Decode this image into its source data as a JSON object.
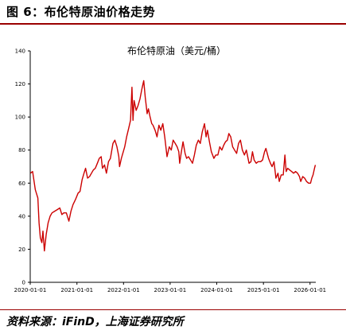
{
  "figure_title": "图 6：布伦特原油价格走势",
  "source_text": "资料来源：iFinD，上海证券研究所",
  "colors": {
    "series": "#cc0000",
    "rule": "#9b0000"
  },
  "chart_data": {
    "type": "line",
    "title": "布伦特原油（美元/桶）",
    "xlabel": "",
    "ylabel": "",
    "ylim": [
      0,
      140
    ],
    "y_ticks": [
      0,
      20,
      40,
      60,
      80,
      100,
      120,
      140
    ],
    "x_ticks": [
      "2020-01-01",
      "2021-01-01",
      "2022-01-01",
      "2023-01-01",
      "2024-01-01",
      "2025-01-01",
      "2026-01-01"
    ],
    "xlim": [
      "2020-01-01",
      "2026-02-15"
    ],
    "grid": false,
    "legend": "none",
    "series": [
      {
        "x": [
          "2020-01-02",
          "2020-01-20",
          "2020-02-10",
          "2020-03-01",
          "2020-03-10",
          "2020-03-20",
          "2020-04-01",
          "2020-04-10",
          "2020-04-21",
          "2020-05-05",
          "2020-05-20",
          "2020-06-05",
          "2020-06-20",
          "2020-07-10",
          "2020-08-01",
          "2020-08-20",
          "2020-09-05",
          "2020-09-20",
          "2020-10-10",
          "2020-10-30",
          "2020-11-15",
          "2020-12-01",
          "2020-12-20",
          "2021-01-10",
          "2021-01-25",
          "2021-02-10",
          "2021-02-25",
          "2021-03-10",
          "2021-03-25",
          "2021-04-10",
          "2021-04-25",
          "2021-05-10",
          "2021-05-25",
          "2021-06-10",
          "2021-06-25",
          "2021-07-10",
          "2021-07-20",
          "2021-08-05",
          "2021-08-20",
          "2021-09-05",
          "2021-09-20",
          "2021-10-10",
          "2021-10-25",
          "2021-11-10",
          "2021-11-25",
          "2021-12-01",
          "2021-12-15",
          "2022-01-10",
          "2022-01-25",
          "2022-02-10",
          "2022-02-25",
          "2022-03-08",
          "2022-03-16",
          "2022-03-25",
          "2022-04-10",
          "2022-04-25",
          "2022-05-10",
          "2022-05-25",
          "2022-06-08",
          "2022-06-20",
          "2022-07-05",
          "2022-07-15",
          "2022-07-28",
          "2022-08-10",
          "2022-08-20",
          "2022-09-05",
          "2022-09-20",
          "2022-10-05",
          "2022-10-20",
          "2022-11-05",
          "2022-11-20",
          "2022-12-08",
          "2022-12-25",
          "2023-01-10",
          "2023-01-25",
          "2023-02-10",
          "2023-02-25",
          "2023-03-10",
          "2023-03-17",
          "2023-03-28",
          "2023-04-12",
          "2023-04-28",
          "2023-05-10",
          "2023-05-25",
          "2023-06-10",
          "2023-06-25",
          "2023-07-10",
          "2023-07-25",
          "2023-08-10",
          "2023-08-25",
          "2023-09-10",
          "2023-09-27",
          "2023-10-10",
          "2023-10-20",
          "2023-11-05",
          "2023-11-20",
          "2023-12-10",
          "2023-12-25",
          "2024-01-10",
          "2024-01-25",
          "2024-02-10",
          "2024-02-25",
          "2024-03-10",
          "2024-03-25",
          "2024-04-05",
          "2024-04-20",
          "2024-05-05",
          "2024-05-20",
          "2024-06-05",
          "2024-06-20",
          "2024-07-05",
          "2024-07-20",
          "2024-08-05",
          "2024-08-20",
          "2024-09-10",
          "2024-09-25",
          "2024-10-07",
          "2024-10-20",
          "2024-11-05",
          "2024-11-20",
          "2024-12-10",
          "2024-12-25",
          "2025-01-10",
          "2025-01-20",
          "2025-02-10",
          "2025-02-25",
          "2025-03-10",
          "2025-03-25",
          "2025-04-09",
          "2025-04-25",
          "2025-05-05",
          "2025-05-20",
          "2025-06-05",
          "2025-06-18",
          "2025-06-28",
          "2025-07-10",
          "2025-07-25",
          "2025-08-10",
          "2025-08-25",
          "2025-09-10",
          "2025-09-25",
          "2025-10-10",
          "2025-10-20",
          "2025-11-05",
          "2025-11-20",
          "2025-12-05",
          "2025-12-20",
          "2026-01-05",
          "2026-01-15",
          "2026-01-25",
          "2026-02-05",
          "2026-02-12"
        ],
        "y": [
          66,
          67,
          56,
          51,
          36,
          27,
          24,
          31,
          19,
          29,
          36,
          40,
          42,
          43,
          44,
          45,
          41,
          42,
          42,
          37,
          43,
          47,
          50,
          54,
          55,
          62,
          66,
          69,
          63,
          64,
          66,
          68,
          69,
          72,
          75,
          76,
          69,
          71,
          66,
          73,
          75,
          84,
          86,
          82,
          76,
          70,
          75,
          82,
          88,
          93,
          98,
          118,
          98,
          110,
          104,
          107,
          111,
          117,
          122,
          112,
          102,
          105,
          100,
          96,
          95,
          92,
          88,
          95,
          92,
          96,
          88,
          76,
          82,
          80,
          86,
          84,
          82,
          79,
          72,
          78,
          85,
          78,
          75,
          76,
          74,
          72,
          77,
          83,
          86,
          84,
          91,
          96,
          88,
          92,
          85,
          79,
          75,
          77,
          77,
          82,
          80,
          83,
          85,
          86,
          90,
          88,
          82,
          80,
          78,
          84,
          86,
          80,
          77,
          80,
          72,
          73,
          79,
          74,
          72,
          73,
          73,
          74,
          79,
          81,
          75,
          72,
          70,
          73,
          63,
          66,
          61,
          65,
          65,
          77,
          67,
          69,
          68,
          67,
          66,
          67,
          66,
          64,
          61,
          64,
          63,
          61,
          60,
          60,
          63,
          65,
          69,
          71
        ]
      }
    ]
  }
}
